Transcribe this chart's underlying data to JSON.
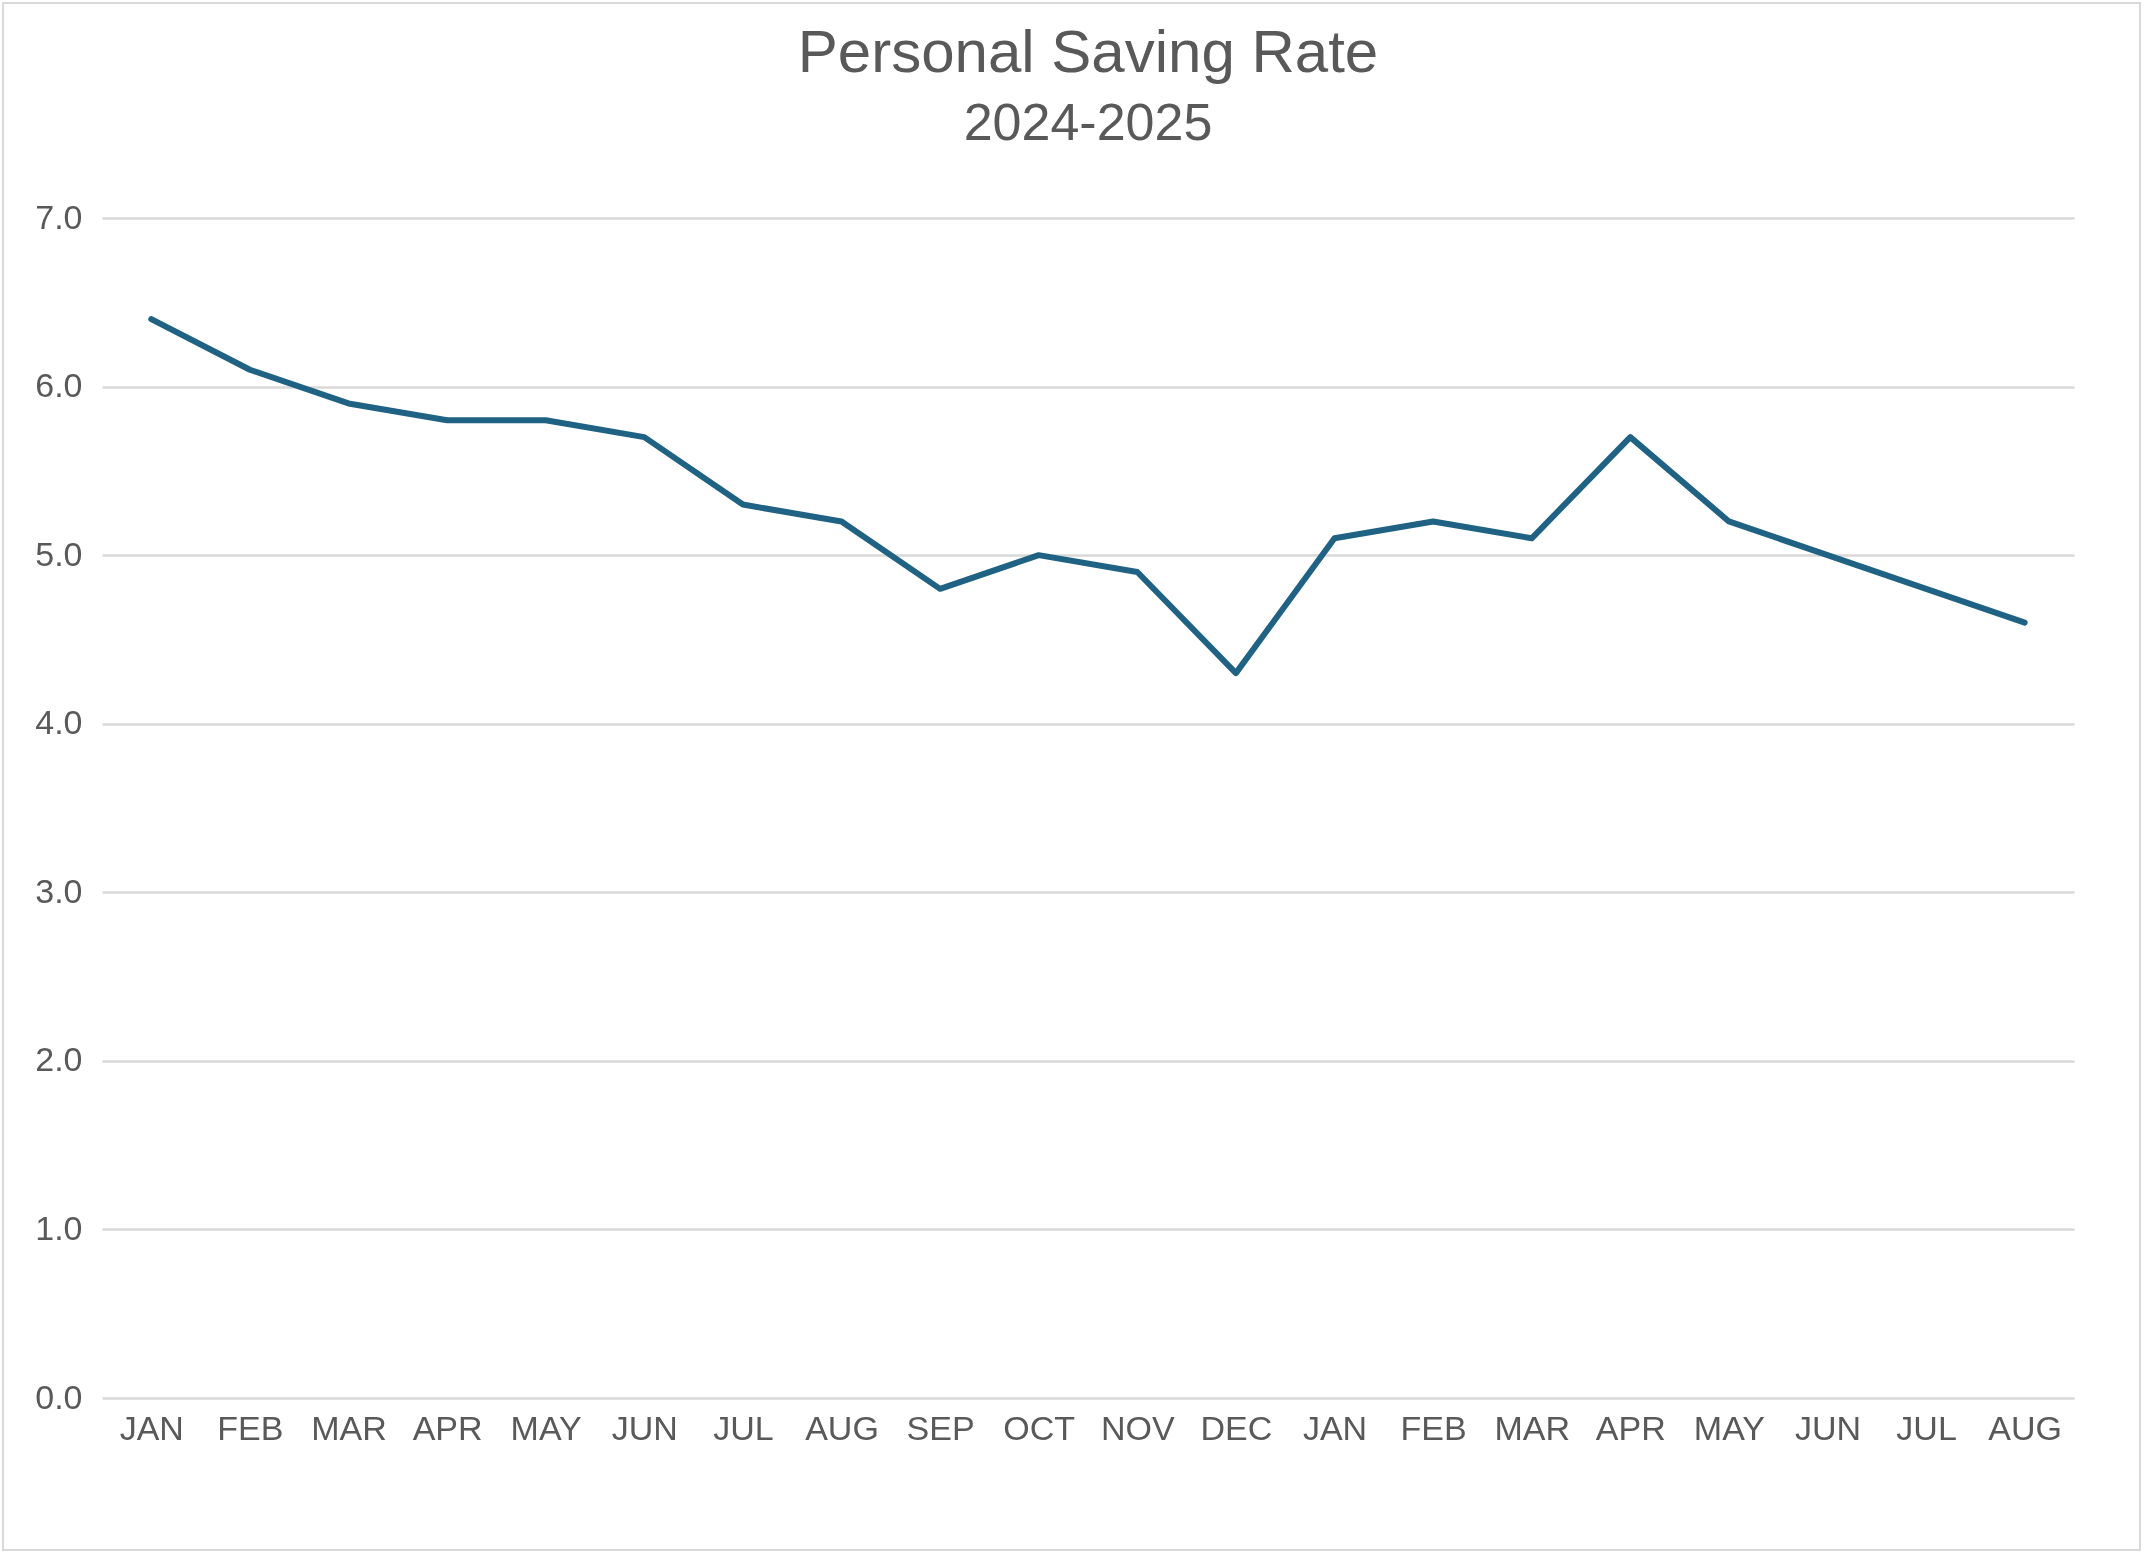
{
  "chart_data": {
    "type": "line",
    "title": "Personal Saving Rate",
    "subtitle": "2024-2025",
    "categories": [
      "JAN",
      "FEB",
      "MAR",
      "APR",
      "MAY",
      "JUN",
      "JUL",
      "AUG",
      "SEP",
      "OCT",
      "NOV",
      "DEC",
      "JAN",
      "FEB",
      "MAR",
      "APR",
      "MAY",
      "JUN",
      "JUL",
      "AUG"
    ],
    "series": [
      {
        "color": "#1f6283",
        "values": [
          6.4,
          6.1,
          5.9,
          5.8,
          5.8,
          5.7,
          5.3,
          5.2,
          4.8,
          5.0,
          4.9,
          4.3,
          5.1,
          5.2,
          5.1,
          5.7,
          5.2,
          5.0,
          4.8,
          4.6
        ]
      }
    ],
    "ylim": [
      0,
      7
    ],
    "yticks": [
      {
        "value": 0,
        "label": "0.0"
      },
      {
        "value": 1,
        "label": "1.0"
      },
      {
        "value": 2,
        "label": "2.0"
      },
      {
        "value": 3,
        "label": "3.0"
      },
      {
        "value": 4,
        "label": "4.0"
      },
      {
        "value": 5,
        "label": "5.0"
      },
      {
        "value": 6,
        "label": "6.0"
      },
      {
        "value": 7,
        "label": "7.0"
      }
    ],
    "grid": "y",
    "marker": "none",
    "line_style": "solid"
  }
}
